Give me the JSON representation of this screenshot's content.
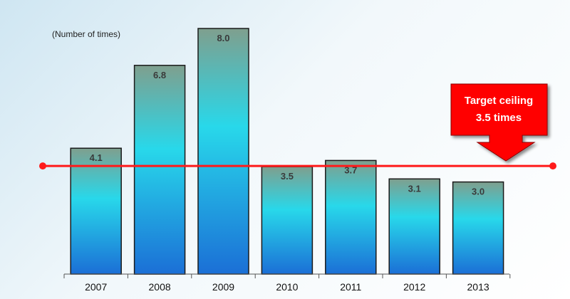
{
  "chart_data": {
    "type": "bar",
    "categories": [
      "2007",
      "2008",
      "2009",
      "2010",
      "2011",
      "2012",
      "2013"
    ],
    "values": [
      4.1,
      6.8,
      8.0,
      3.5,
      3.7,
      3.1,
      3.0
    ],
    "value_labels": [
      "4.1",
      "6.8",
      "8.0",
      "3.5",
      "3.7",
      "3.1",
      "3.0"
    ],
    "ylabel": "(Number of times)",
    "ylim": [
      0,
      8.0
    ],
    "reference_line": {
      "value": 3.5
    },
    "annotation": {
      "line1": "Target ceiling",
      "line2": "3.5 times"
    },
    "grid": false,
    "colors": {
      "bar_top": "#7f9f8e",
      "bar_mid": "#28d8ea",
      "bar_bottom": "#1b6fd6",
      "bar_outline": "#1a1a1a",
      "reference_line": "#ff1a1a",
      "callout_fill": "#ff0000",
      "callout_text": "#ffffff"
    }
  }
}
